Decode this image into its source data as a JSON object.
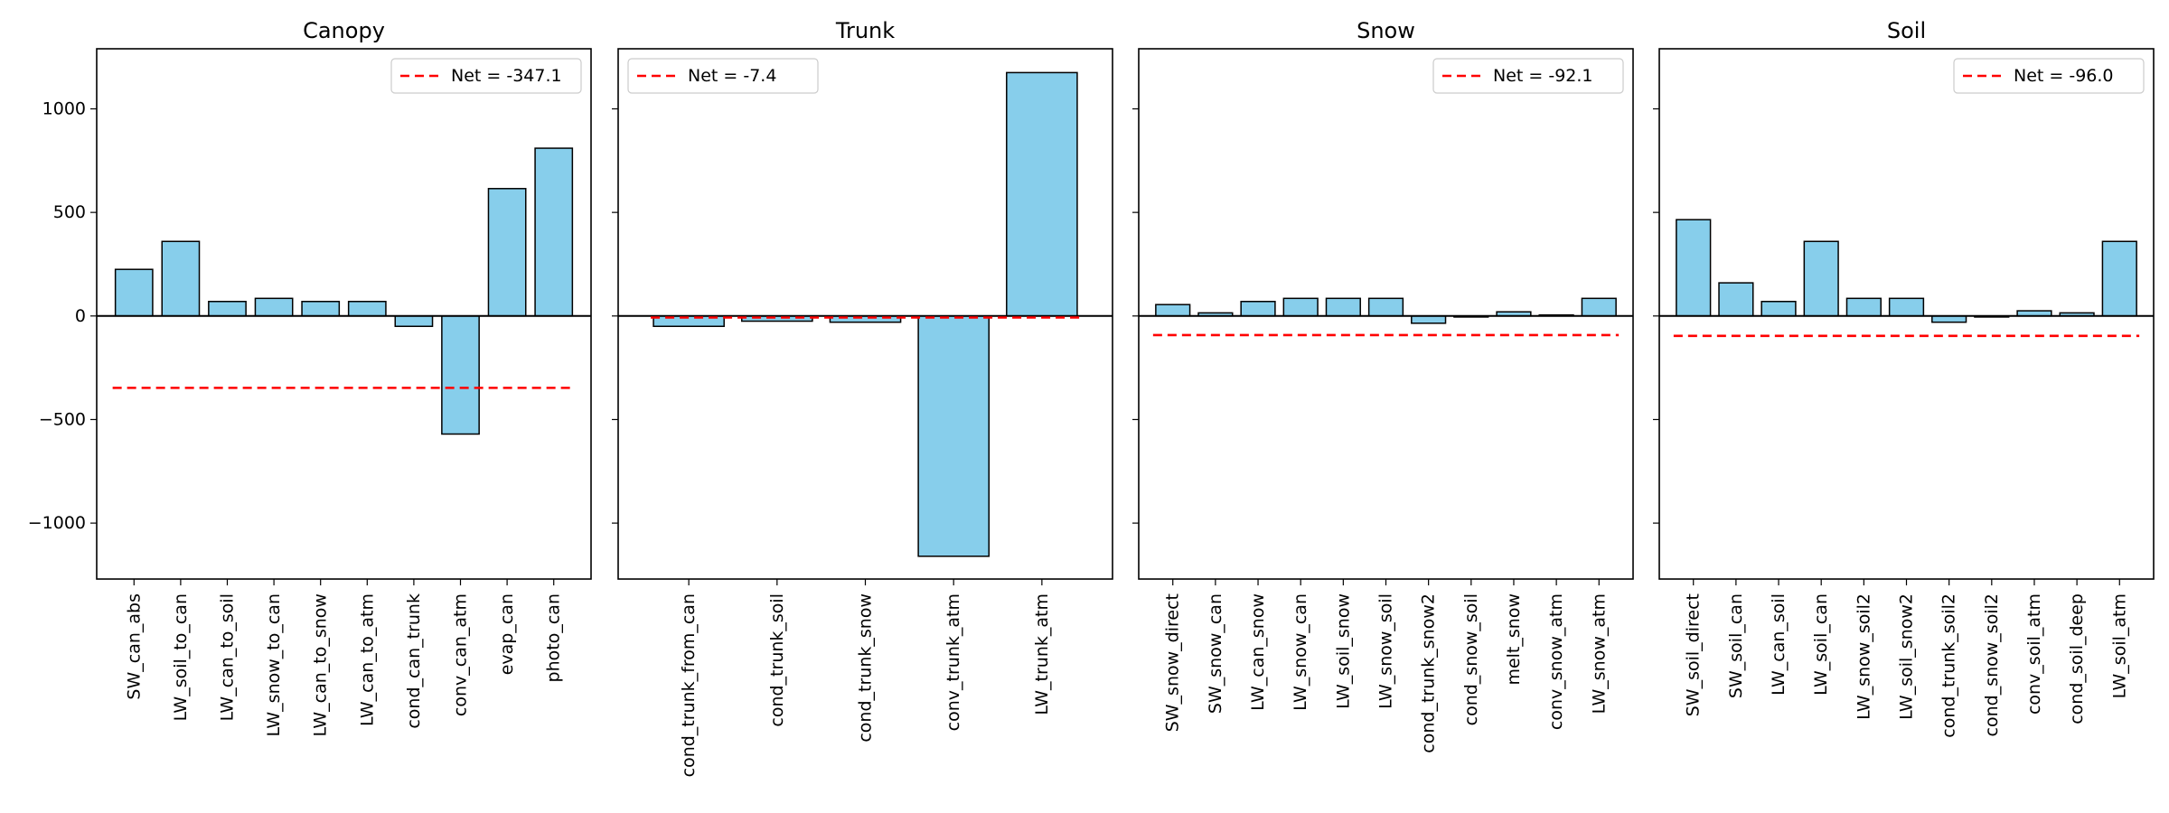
{
  "figure": {
    "colors": {
      "bar_fill": "#87ceeb",
      "bar_edge": "#000000",
      "net_line": "#ff0000",
      "axis": "#000000"
    },
    "y_ticks": [
      -1000,
      -500,
      0,
      500,
      1000
    ],
    "y_tick_labels": [
      "−1000",
      "−500",
      "0",
      "500",
      "1000"
    ],
    "shared_y": true
  },
  "chart_data": [
    {
      "type": "bar",
      "title": "Canopy",
      "categories": [
        "SW_can_abs",
        "LW_soil_to_can",
        "LW_can_to_soil",
        "LW_snow_to_can",
        "LW_can_to_snow",
        "LW_can_to_atm",
        "cond_can_trunk",
        "conv_can_atm",
        "evap_can",
        "photo_can"
      ],
      "values": [
        225,
        360,
        70,
        85,
        70,
        70,
        -50,
        -570,
        615,
        810
      ],
      "net": -347.1,
      "legend_label": "Net = -347.1",
      "legend_position": "top-right",
      "ylim": [
        -1270,
        1290
      ],
      "zero_line": true
    },
    {
      "type": "bar",
      "title": "Trunk",
      "categories": [
        "cond_trunk_from_can",
        "cond_trunk_soil",
        "cond_trunk_snow",
        "conv_trunk_atm",
        "LW_trunk_atm"
      ],
      "values": [
        -50,
        -25,
        -30,
        -1160,
        1175
      ],
      "net": -7.4,
      "legend_label": "Net = -7.4",
      "legend_position": "top-left",
      "ylim": [
        -1270,
        1290
      ],
      "zero_line": true
    },
    {
      "type": "bar",
      "title": "Snow",
      "categories": [
        "SW_snow_direct",
        "SW_snow_can",
        "LW_can_snow",
        "LW_snow_can",
        "LW_soil_snow",
        "LW_snow_soil",
        "cond_trunk_snow2",
        "cond_snow_soil",
        "melt_snow",
        "conv_snow_atm",
        "LW_snow_atm"
      ],
      "values": [
        55,
        15,
        70,
        85,
        85,
        85,
        -35,
        -5,
        20,
        5,
        85
      ],
      "net": -92.1,
      "legend_label": "Net = -92.1",
      "legend_position": "top-right",
      "ylim": [
        -1270,
        1290
      ],
      "zero_line": true
    },
    {
      "type": "bar",
      "title": "Soil",
      "categories": [
        "SW_soil_direct",
        "SW_soil_can",
        "LW_can_soil",
        "LW_soil_can",
        "LW_snow_soil2",
        "LW_soil_snow2",
        "cond_trunk_soil2",
        "cond_snow_soil2",
        "conv_soil_atm",
        "cond_soil_deep",
        "LW_soil_atm"
      ],
      "values": [
        465,
        160,
        70,
        360,
        85,
        85,
        -30,
        -5,
        25,
        15,
        360
      ],
      "net": -96.0,
      "legend_label": "Net = -96.0",
      "legend_position": "top-right",
      "ylim": [
        -1270,
        1290
      ],
      "zero_line": true
    }
  ]
}
